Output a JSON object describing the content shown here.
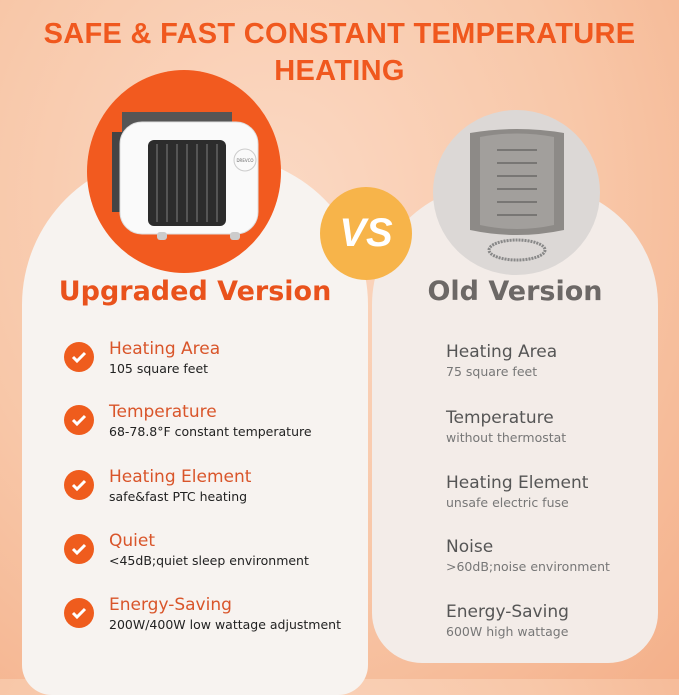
{
  "title": "SAFE & FAST CONSTANT TEMPERATURE HEATING",
  "vs_label": "VS",
  "product_brand": "DREVCO",
  "left": {
    "heading": "Upgraded Version",
    "items": [
      {
        "title": "Heating Area",
        "desc": "105 square feet"
      },
      {
        "title": "Temperature",
        "desc": "68-78.8°F constant temperature"
      },
      {
        "title": "Heating Element",
        "desc": "safe&fast PTC heating"
      },
      {
        "title": "Quiet",
        "desc": "<45dB;quiet sleep environment"
      },
      {
        "title": "Energy-Saving",
        "desc": "200W/400W low wattage adjustment"
      }
    ]
  },
  "right": {
    "heading": "Old Version",
    "items": [
      {
        "title": "Heating Area",
        "desc": "75 square feet"
      },
      {
        "title": "Temperature",
        "desc": "without thermostat"
      },
      {
        "title": "Heating Element",
        "desc": "unsafe electric fuse"
      },
      {
        "title": "Noise",
        "desc": ">60dB;noise environment"
      },
      {
        "title": "Energy-Saving",
        "desc": "600W high wattage"
      }
    ]
  },
  "colors": {
    "accent": "#f25a1f",
    "vs": "#f7b44a",
    "old": "#6c6866"
  }
}
